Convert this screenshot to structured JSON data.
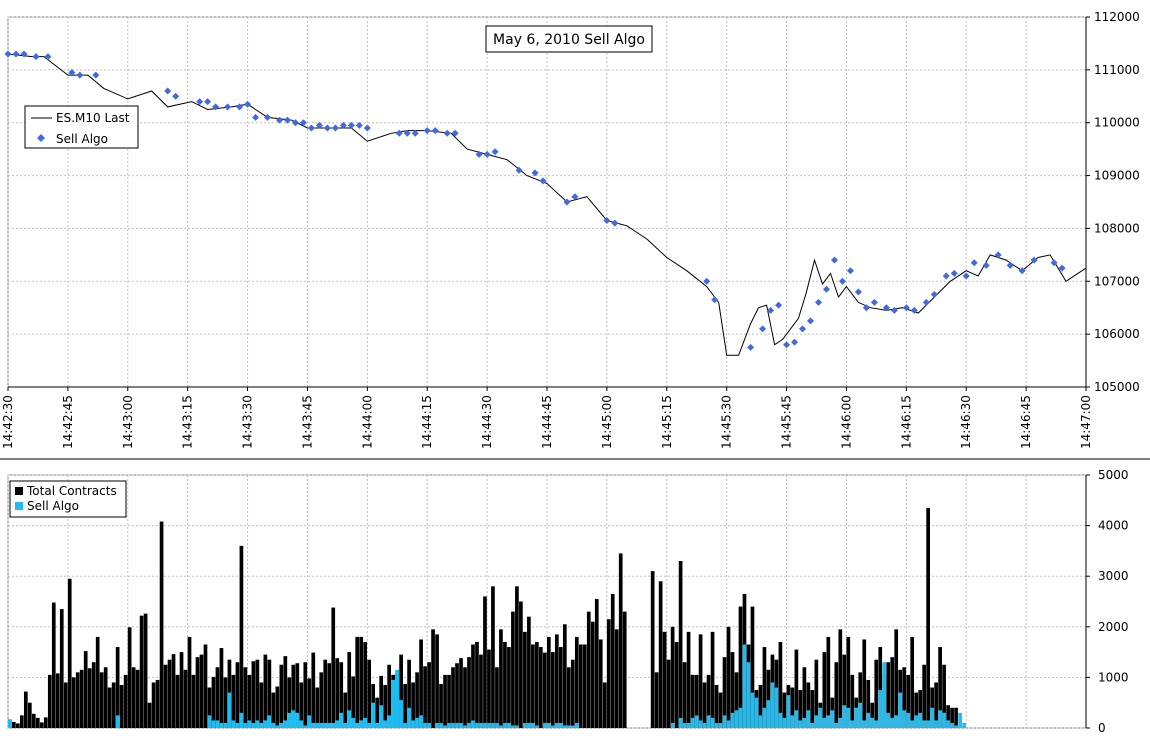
{
  "chart_data": [
    {
      "type": "line",
      "title": "May 6, 2010 Sell Algo",
      "xlabel": "",
      "ylabel": "",
      "x_unit": "time",
      "x_range": [
        "14:42:30",
        "14:47:00"
      ],
      "ylim": [
        105000,
        112000
      ],
      "x_ticks": [
        "14:42:30",
        "14:42:45",
        "14:43:00",
        "14:43:15",
        "14:43:30",
        "14:43:45",
        "14:44:00",
        "14:44:15",
        "14:44:30",
        "14:44:45",
        "14:45:00",
        "14:45:15",
        "14:45:30",
        "14:45:45",
        "14:46:00",
        "14:46:15",
        "14:46:30",
        "14:46:45",
        "14:47:00"
      ],
      "y_ticks": [
        "105000",
        "106000",
        "107000",
        "108000",
        "109000",
        "110000",
        "111000",
        "112000"
      ],
      "y_axis_side": "right",
      "grid": true,
      "legend_position": "upper-left",
      "series": [
        {
          "name": "ES.M10 Last",
          "style": "line",
          "color": "#000000",
          "x": [
            "14:42:30",
            "14:42:36",
            "14:42:39",
            "14:42:45",
            "14:42:50",
            "14:42:54",
            "14:43:00",
            "14:43:06",
            "14:43:10",
            "14:43:16",
            "14:43:20",
            "14:43:26",
            "14:43:30",
            "14:43:35",
            "14:43:41",
            "14:43:45",
            "14:43:50",
            "14:43:56",
            "14:44:00",
            "14:44:06",
            "14:44:10",
            "14:44:15",
            "14:44:21",
            "14:44:25",
            "14:44:30",
            "14:44:35",
            "14:44:40",
            "14:44:45",
            "14:44:50",
            "14:44:55",
            "14:45:00",
            "14:45:05",
            "14:45:10",
            "14:45:15",
            "14:45:20",
            "14:45:25",
            "14:45:28",
            "14:45:30",
            "14:45:33",
            "14:45:36",
            "14:45:38",
            "14:45:40",
            "14:45:42",
            "14:45:44",
            "14:45:46",
            "14:45:48",
            "14:45:50",
            "14:45:52",
            "14:45:54",
            "14:45:56",
            "14:45:58",
            "14:46:00",
            "14:46:03",
            "14:46:06",
            "14:46:10",
            "14:46:14",
            "14:46:18",
            "14:46:22",
            "14:46:26",
            "14:46:30",
            "14:46:33",
            "14:46:36",
            "14:46:40",
            "14:46:44",
            "14:46:48",
            "14:46:51",
            "14:46:55",
            "14:47:00"
          ],
          "y": [
            111300,
            111250,
            111250,
            110900,
            110900,
            110650,
            110450,
            110600,
            110300,
            110400,
            110250,
            110300,
            110350,
            110100,
            110050,
            109900,
            109900,
            109900,
            109650,
            109800,
            109850,
            109850,
            109800,
            109500,
            109400,
            109300,
            109000,
            108850,
            108500,
            108600,
            108150,
            108050,
            107800,
            107450,
            107200,
            106900,
            106600,
            105600,
            105600,
            106200,
            106500,
            106550,
            105800,
            105900,
            106100,
            106300,
            106800,
            107400,
            106950,
            107150,
            106700,
            106900,
            106600,
            106500,
            106450,
            106500,
            106400,
            106700,
            107000,
            107200,
            107100,
            107500,
            107400,
            107200,
            107450,
            107500,
            107000,
            107250
          ]
        },
        {
          "name": "Sell Algo",
          "style": "markers",
          "marker": "diamond",
          "color": "#4169e1",
          "x": [
            "14:42:30",
            "14:42:32",
            "14:42:34",
            "14:42:37",
            "14:42:40",
            "14:42:46",
            "14:42:48",
            "14:42:52",
            "14:43:10",
            "14:43:12",
            "14:43:18",
            "14:43:20",
            "14:43:22",
            "14:43:25",
            "14:43:28",
            "14:43:30",
            "14:43:32",
            "14:43:35",
            "14:43:38",
            "14:43:40",
            "14:43:42",
            "14:43:44",
            "14:43:46",
            "14:43:48",
            "14:43:50",
            "14:43:52",
            "14:43:54",
            "14:43:56",
            "14:43:58",
            "14:44:00",
            "14:44:08",
            "14:44:10",
            "14:44:12",
            "14:44:15",
            "14:44:17",
            "14:44:20",
            "14:44:22",
            "14:44:28",
            "14:44:30",
            "14:44:32",
            "14:44:38",
            "14:44:42",
            "14:44:44",
            "14:44:50",
            "14:44:52",
            "14:45:00",
            "14:45:02",
            "14:45:25",
            "14:45:27",
            "14:45:36",
            "14:45:39",
            "14:45:41",
            "14:45:43",
            "14:45:45",
            "14:45:47",
            "14:45:49",
            "14:45:51",
            "14:45:53",
            "14:45:55",
            "14:45:57",
            "14:45:59",
            "14:46:01",
            "14:46:03",
            "14:46:05",
            "14:46:07",
            "14:46:10",
            "14:46:12",
            "14:46:15",
            "14:46:17",
            "14:46:20",
            "14:46:22",
            "14:46:25",
            "14:46:27",
            "14:46:30",
            "14:46:32",
            "14:46:35",
            "14:46:38",
            "14:46:41",
            "14:46:44",
            "14:46:47",
            "14:46:52",
            "14:46:54"
          ],
          "y": [
            111300,
            111300,
            111300,
            111250,
            111250,
            110950,
            110900,
            110900,
            110600,
            110500,
            110400,
            110400,
            110300,
            110300,
            110300,
            110350,
            110100,
            110100,
            110050,
            110050,
            110000,
            110000,
            109900,
            109950,
            109900,
            109900,
            109950,
            109950,
            109950,
            109900,
            109800,
            109800,
            109800,
            109850,
            109850,
            109800,
            109800,
            109400,
            109400,
            109450,
            109100,
            109050,
            108900,
            108500,
            108600,
            108150,
            108100,
            107000,
            106650,
            105750,
            106100,
            106450,
            106550,
            105800,
            105850,
            106100,
            106250,
            106600,
            106850,
            107400,
            107000,
            107200,
            106800,
            106500,
            106600,
            106500,
            106450,
            106500,
            106450,
            106600,
            106750,
            107100,
            107150,
            107100,
            107350,
            107300,
            107500,
            107300,
            107200,
            107400,
            107350,
            107250
          ]
        }
      ]
    },
    {
      "type": "bar",
      "title": "",
      "xlabel": "",
      "ylabel": "",
      "ylim": [
        0,
        5000
      ],
      "y_ticks": [
        "0",
        "1000",
        "2000",
        "3000",
        "4000",
        "5000"
      ],
      "y_axis_side": "right",
      "grid": true,
      "legend_position": "upper-left",
      "x_range": [
        "14:42:30",
        "14:47:00"
      ],
      "bin_seconds": 1,
      "series": [
        {
          "name": "Total Contracts",
          "color": "#000000",
          "values": [
            170,
            120,
            90,
            250,
            720,
            500,
            280,
            200,
            110,
            210,
            1050,
            2480,
            1080,
            2350,
            900,
            2950,
            1000,
            1100,
            1150,
            1520,
            1180,
            1300,
            1800,
            1100,
            1200,
            800,
            900,
            1600,
            850,
            1050,
            1990,
            1200,
            1150,
            2220,
            2260,
            500,
            900,
            950,
            4080,
            1250,
            1350,
            1460,
            1050,
            1500,
            1150,
            1800,
            1050,
            1400,
            1450,
            1650,
            800,
            1010,
            1200,
            1580,
            1000,
            1350,
            1050,
            1300,
            3600,
            1200,
            1050,
            1320,
            1350,
            900,
            1450,
            1350,
            700,
            820,
            1250,
            1420,
            1000,
            1250,
            1280,
            900,
            1300,
            980,
            1490,
            800,
            1100,
            1350,
            1280,
            2380,
            1380,
            1300,
            700,
            1500,
            1020,
            1800,
            1800,
            1700,
            1350,
            870,
            600,
            1030,
            850,
            1250,
            1050,
            1080,
            1450,
            870,
            1350,
            900,
            1100,
            1750,
            1220,
            1300,
            1950,
            1850,
            870,
            1050,
            1050,
            1200,
            1280,
            1380,
            1200,
            1400,
            1650,
            1700,
            1450,
            2600,
            1550,
            2800,
            1200,
            1950,
            1700,
            1600,
            2300,
            2800,
            2500,
            1900,
            2200,
            1650,
            1700,
            1600,
            1490,
            1800,
            1500,
            1850,
            1600,
            2050,
            1200,
            1350,
            1800,
            1650,
            1650,
            2300,
            2100,
            2550,
            1750,
            900,
            2150,
            2650,
            1950,
            3450,
            2300,
            0,
            0,
            0,
            0,
            0,
            0,
            3100,
            1100,
            2900,
            1900,
            1350,
            2000,
            1700,
            3300,
            1300,
            1900,
            1050,
            1050,
            1850,
            900,
            1050,
            1900,
            850,
            700,
            1400,
            2000,
            1500,
            1100,
            2400,
            2650,
            1650,
            2400,
            750,
            850,
            1600,
            1150,
            1450,
            1350,
            1700,
            700,
            850,
            800,
            1550,
            750,
            1200,
            900,
            750,
            1350,
            500,
            1500,
            1800,
            600,
            1300,
            1950,
            1450,
            1800,
            1050,
            600,
            1100,
            1750,
            950,
            500,
            1350,
            1600,
            1050,
            1300,
            1400,
            1950,
            1150,
            1200,
            1050,
            1800,
            700,
            750,
            1250,
            4350,
            800,
            900,
            1600,
            1250,
            450,
            400,
            400
          ]
        },
        {
          "name": "Sell Algo",
          "color": "#1ebcf0",
          "values": [
            170,
            0,
            0,
            0,
            0,
            0,
            0,
            0,
            0,
            0,
            0,
            0,
            0,
            0,
            0,
            0,
            0,
            0,
            0,
            0,
            0,
            0,
            0,
            0,
            0,
            0,
            0,
            250,
            0,
            0,
            0,
            0,
            0,
            0,
            0,
            0,
            0,
            0,
            0,
            0,
            0,
            0,
            0,
            0,
            0,
            0,
            0,
            0,
            0,
            0,
            250,
            150,
            150,
            100,
            100,
            700,
            150,
            100,
            300,
            100,
            150,
            100,
            150,
            100,
            150,
            250,
            100,
            50,
            100,
            150,
            300,
            350,
            300,
            150,
            50,
            250,
            100,
            100,
            100,
            100,
            100,
            100,
            150,
            300,
            100,
            350,
            200,
            100,
            150,
            200,
            100,
            500,
            100,
            450,
            150,
            250,
            950,
            1150,
            550,
            100,
            400,
            150,
            200,
            250,
            100,
            100,
            0,
            100,
            100,
            50,
            100,
            100,
            100,
            100,
            50,
            100,
            150,
            100,
            100,
            100,
            100,
            100,
            100,
            50,
            100,
            100,
            50,
            50,
            0,
            100,
            100,
            100,
            50,
            0,
            100,
            100,
            50,
            100,
            100,
            50,
            50,
            50,
            100,
            0,
            0,
            0,
            0,
            0,
            0,
            0,
            0,
            0,
            0,
            0,
            0,
            0,
            0,
            0,
            0,
            0,
            0,
            0,
            0,
            0,
            0,
            0,
            100,
            0,
            200,
            100,
            100,
            200,
            250,
            150,
            100,
            250,
            200,
            100,
            100,
            250,
            150,
            300,
            350,
            400,
            1650,
            1300,
            700,
            600,
            250,
            400,
            550,
            900,
            800,
            300,
            200,
            650,
            250,
            350,
            150,
            200,
            350,
            100,
            250,
            400,
            200,
            250,
            350,
            100,
            200,
            450,
            400,
            150,
            400,
            500,
            150,
            300,
            200,
            150,
            750,
            1300,
            300,
            200,
            250,
            700,
            350,
            300,
            150,
            250,
            300,
            150,
            150,
            400,
            150,
            350,
            300,
            150,
            100,
            50,
            300,
            100,
            0,
            0,
            0
          ]
        }
      ]
    }
  ],
  "colors": {
    "price_line": "#000000",
    "sell_algo_marker": "#4169e1",
    "total_contracts": "#000000",
    "sell_algo_bar": "#1ebcf0",
    "grid": "#c0c0c0"
  }
}
